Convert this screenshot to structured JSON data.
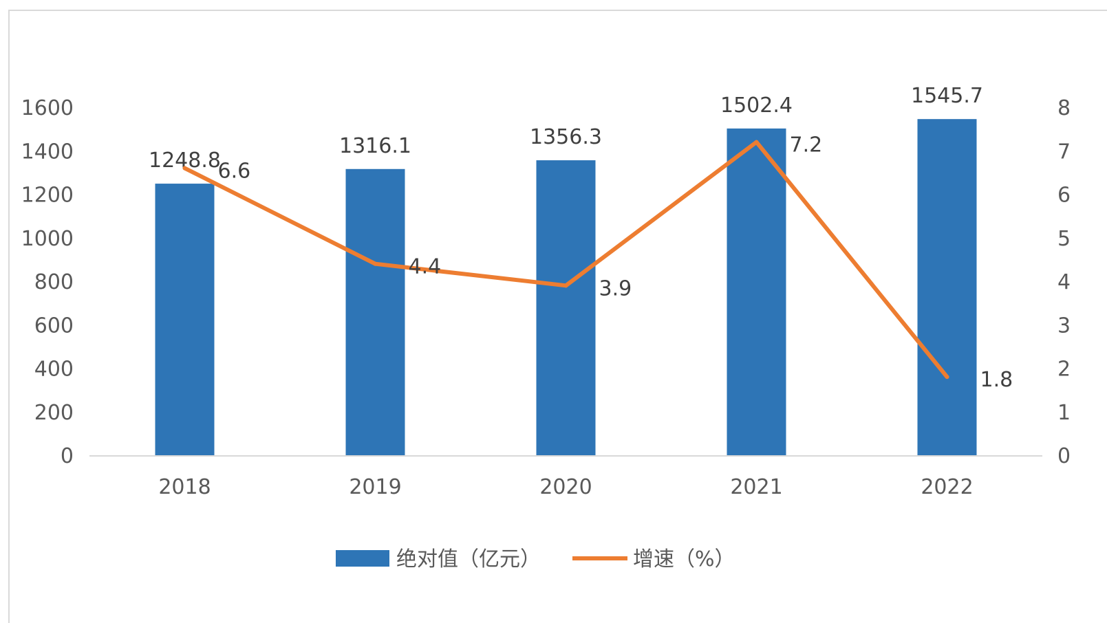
{
  "chart_data": {
    "type": "bar",
    "categories": [
      "2018",
      "2019",
      "2020",
      "2021",
      "2022"
    ],
    "series": [
      {
        "name": "绝对值（亿元）",
        "type": "bar",
        "axis": "left",
        "color": "#2e75b6",
        "values": [
          1248.8,
          1316.1,
          1356.3,
          1502.4,
          1545.7
        ],
        "labels": [
          "1248.8",
          "1316.1",
          "1356.3",
          "1502.4",
          "1545.7"
        ]
      },
      {
        "name": "增速（%）",
        "type": "line",
        "axis": "right",
        "color": "#ed7d31",
        "values": [
          6.6,
          4.4,
          3.9,
          7.2,
          1.8
        ],
        "labels": [
          "6.6",
          "4.4",
          "3.9",
          "7.2",
          "1.8"
        ]
      }
    ],
    "y_left": {
      "min": 0,
      "max": 1600,
      "ticks": [
        0,
        200,
        400,
        600,
        800,
        1000,
        1200,
        1400,
        1600
      ],
      "tick_labels": [
        "0",
        "200",
        "400",
        "600",
        "800",
        "1000",
        "1200",
        "1400",
        "1600"
      ]
    },
    "y_right": {
      "min": 0,
      "max": 8,
      "ticks": [
        0,
        1,
        2,
        3,
        4,
        5,
        6,
        7,
        8
      ],
      "tick_labels": [
        "0",
        "1",
        "2",
        "3",
        "4",
        "5",
        "6",
        "7",
        "8"
      ]
    },
    "title": "",
    "xlabel": "",
    "ylabel": "",
    "grid": false,
    "legend_position": "bottom"
  }
}
